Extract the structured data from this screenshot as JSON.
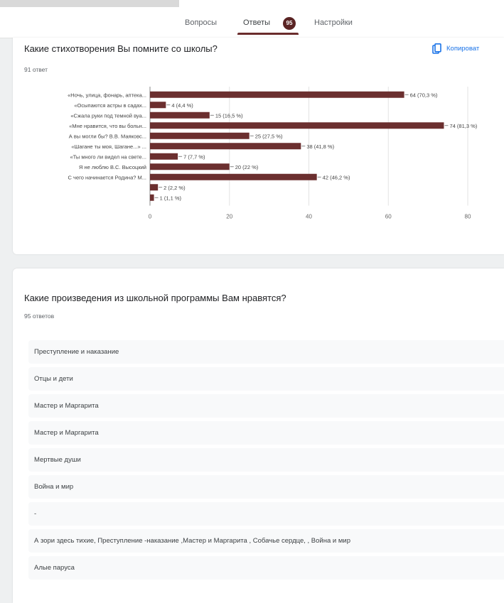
{
  "tabs": {
    "questions": "Вопросы",
    "answers": "Ответы",
    "answers_badge": "95",
    "settings": "Настройки"
  },
  "question1": {
    "title": "Какие стихотворения Вы помните со школы?",
    "count": "91 ответ",
    "copy_label": "Копироват"
  },
  "question2": {
    "title": "Какие произведения из школьной программы Вам нравятся?",
    "count": "95 ответов",
    "responses": [
      "Преступление и наказание",
      "Отцы и дети",
      "Мастер и Маргарита",
      "Мастер и Маргарита",
      "Мертвые души",
      "Война и мир",
      "-",
      "А зори здесь тихие, Преступление -наказание ,Мастер и Маргарита , Собачье сердце, , Война и мир",
      "Алые паруса"
    ]
  },
  "chart_data": {
    "type": "bar",
    "orientation": "horizontal",
    "bar_color": "#6b2f2f",
    "categories": [
      "«Ночь, улица, фонарь, аптека...",
      "«Осыпаются астры в садах...",
      "«Сжала руки под темной вуа...",
      "«Мне нравится, что вы больн...",
      "А вы могли бы? В.В. Маяковс...",
      "«Шагане ты моя, Шагане...» ...",
      "«Ты много ли видел на свете...",
      "Я не люблю В.С. Высоцкий",
      "С чего начинается Родина? М...",
      "",
      ""
    ],
    "values": [
      64,
      4,
      15,
      74,
      25,
      38,
      7,
      20,
      42,
      2,
      1
    ],
    "labels": [
      "64 (70,3 %)",
      "4 (4,4 %)",
      "15 (16,5 %)",
      "74 (81,3 %)",
      "25 (27,5 %)",
      "38 (41,8 %)",
      "7 (7,7 %)",
      "20 (22 %)",
      "42 (46,2 %)",
      "2 (2,2 %)",
      "1 (1,1 %)"
    ],
    "xlim": [
      0,
      80
    ],
    "xticks": [
      "0",
      "20",
      "40",
      "60",
      "80"
    ],
    "grid": true
  }
}
